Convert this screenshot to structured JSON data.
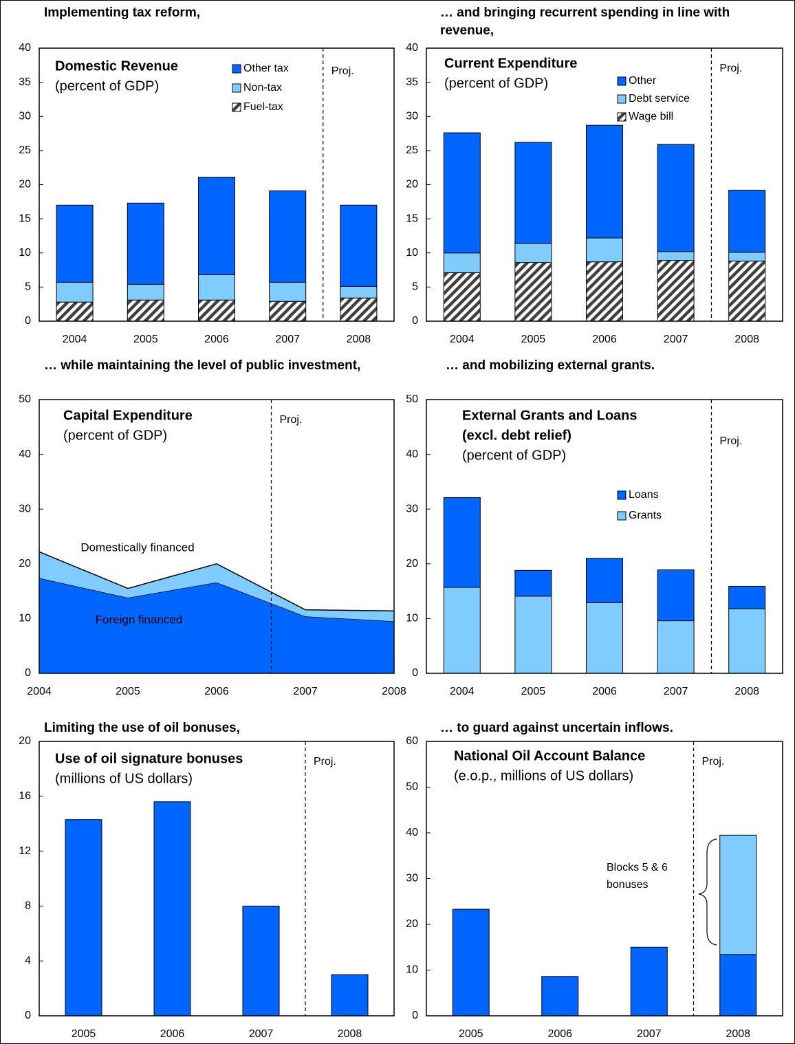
{
  "chart_data": [
    {
      "type": "bar",
      "title": "Implementing tax reform,",
      "inner_title": [
        "Domestic Revenue"
      ],
      "unit_label": "(percent of GDP)",
      "projection_label": "Proj.",
      "legend": true,
      "categories": [
        "2004",
        "2005",
        "2006",
        "2007",
        "2008"
      ],
      "series": [
        {
          "name": "Fuel-tax",
          "color": "#404040",
          "hatch": true,
          "values": [
            2.8,
            3.1,
            3.1,
            2.9,
            3.4
          ]
        },
        {
          "name": "Non-tax",
          "color": "#80ccff",
          "values": [
            2.9,
            2.3,
            3.7,
            2.8,
            1.7
          ]
        },
        {
          "name": "Other tax",
          "color": "#0066ff",
          "values": [
            11.3,
            11.9,
            14.3,
            13.4,
            11.9
          ]
        }
      ],
      "ylim": [
        0,
        40
      ],
      "yticks": [
        0,
        5,
        10,
        15,
        20,
        25,
        30,
        35,
        40
      ]
    },
    {
      "type": "bar",
      "title": "… and bringing recurrent spending in line with revenue,",
      "inner_title": [
        "Current Expenditure"
      ],
      "unit_label": "(percent of GDP)",
      "projection_label": "Proj.",
      "legend": true,
      "categories": [
        "2004",
        "2005",
        "2006",
        "2007",
        "2008"
      ],
      "series": [
        {
          "name": "Wage bill",
          "color": "#404040",
          "hatch": true,
          "values": [
            7.1,
            8.6,
            8.7,
            8.9,
            8.8
          ]
        },
        {
          "name": "Debt service",
          "color": "#80ccff",
          "values": [
            2.9,
            2.8,
            3.5,
            1.3,
            1.3
          ]
        },
        {
          "name": "Other",
          "color": "#0066ff",
          "values": [
            17.6,
            14.8,
            16.5,
            15.7,
            9.1
          ]
        }
      ],
      "ylim": [
        0,
        40
      ],
      "yticks": [
        0,
        5,
        10,
        15,
        20,
        25,
        30,
        35,
        40
      ]
    },
    {
      "type": "area",
      "title": "… while maintaining the level of public investment,",
      "inner_title": [
        "Capital Expenditure"
      ],
      "unit_label": "(percent of GDP)",
      "projection_label": "Proj.",
      "x": [
        2004,
        2005,
        2006,
        2007,
        2008
      ],
      "series": [
        {
          "name": "Foreign financed",
          "color": "#0066ff",
          "values": [
            17.4,
            13.8,
            16.6,
            10.4,
            9.5
          ]
        },
        {
          "name": "Domestically financed",
          "color": "#80ccff",
          "values": [
            4.8,
            1.7,
            3.4,
            1.2,
            1.9
          ]
        }
      ],
      "xlim": [
        2004,
        2008
      ],
      "xticks": [
        2004,
        2005,
        2006,
        2007,
        2008
      ],
      "ylim": [
        0,
        50
      ],
      "yticks": [
        0,
        10,
        20,
        30,
        40,
        50
      ]
    },
    {
      "type": "bar",
      "title": "… and mobilizing external grants.",
      "inner_title": [
        "External Grants and Loans",
        "(excl. debt relief)"
      ],
      "unit_label": "(percent of GDP)",
      "projection_label": "Proj.",
      "legend": true,
      "categories": [
        "2004",
        "2005",
        "2006",
        "2007",
        "2008"
      ],
      "series": [
        {
          "name": "Grants",
          "color": "#80ccff",
          "values": [
            15.7,
            14.1,
            12.9,
            9.6,
            11.8
          ]
        },
        {
          "name": "Loans",
          "color": "#0066ff",
          "values": [
            16.4,
            4.7,
            8.1,
            9.3,
            4.1
          ]
        }
      ],
      "ylim": [
        0,
        50
      ],
      "yticks": [
        0,
        10,
        20,
        30,
        40,
        50
      ]
    },
    {
      "type": "bar",
      "title": "Limiting the use of oil bonuses,",
      "inner_title": [
        "Use of oil signature bonuses"
      ],
      "unit_label": "(millions of US dollars)",
      "projection_label": "Proj.",
      "categories": [
        "2005",
        "2006",
        "2007",
        "2008"
      ],
      "series": [
        {
          "color": "#0066ff",
          "values": [
            14.3,
            15.6,
            8.0,
            3.0
          ]
        }
      ],
      "ylim": [
        0,
        20
      ],
      "yticks": [
        0,
        4,
        8,
        12,
        16,
        20
      ]
    },
    {
      "type": "bar",
      "title": "… to guard against uncertain inflows.",
      "inner_title": [
        "National Oil Account Balance"
      ],
      "unit_label": "(e.o.p., millions of US dollars)",
      "projection_label": "Proj.",
      "annotation": [
        "Blocks 5 & 6",
        "bonuses"
      ],
      "categories": [
        "2005",
        "2006",
        "2007",
        "2008"
      ],
      "series": [
        {
          "color": "#0066ff",
          "values": [
            23.3,
            8.6,
            15.0,
            13.4
          ]
        },
        {
          "color": "#80ccff",
          "values": [
            null,
            null,
            null,
            26.1
          ]
        }
      ],
      "ylim": [
        0,
        60
      ],
      "yticks": [
        0,
        10,
        20,
        30,
        40,
        50,
        60
      ]
    }
  ]
}
